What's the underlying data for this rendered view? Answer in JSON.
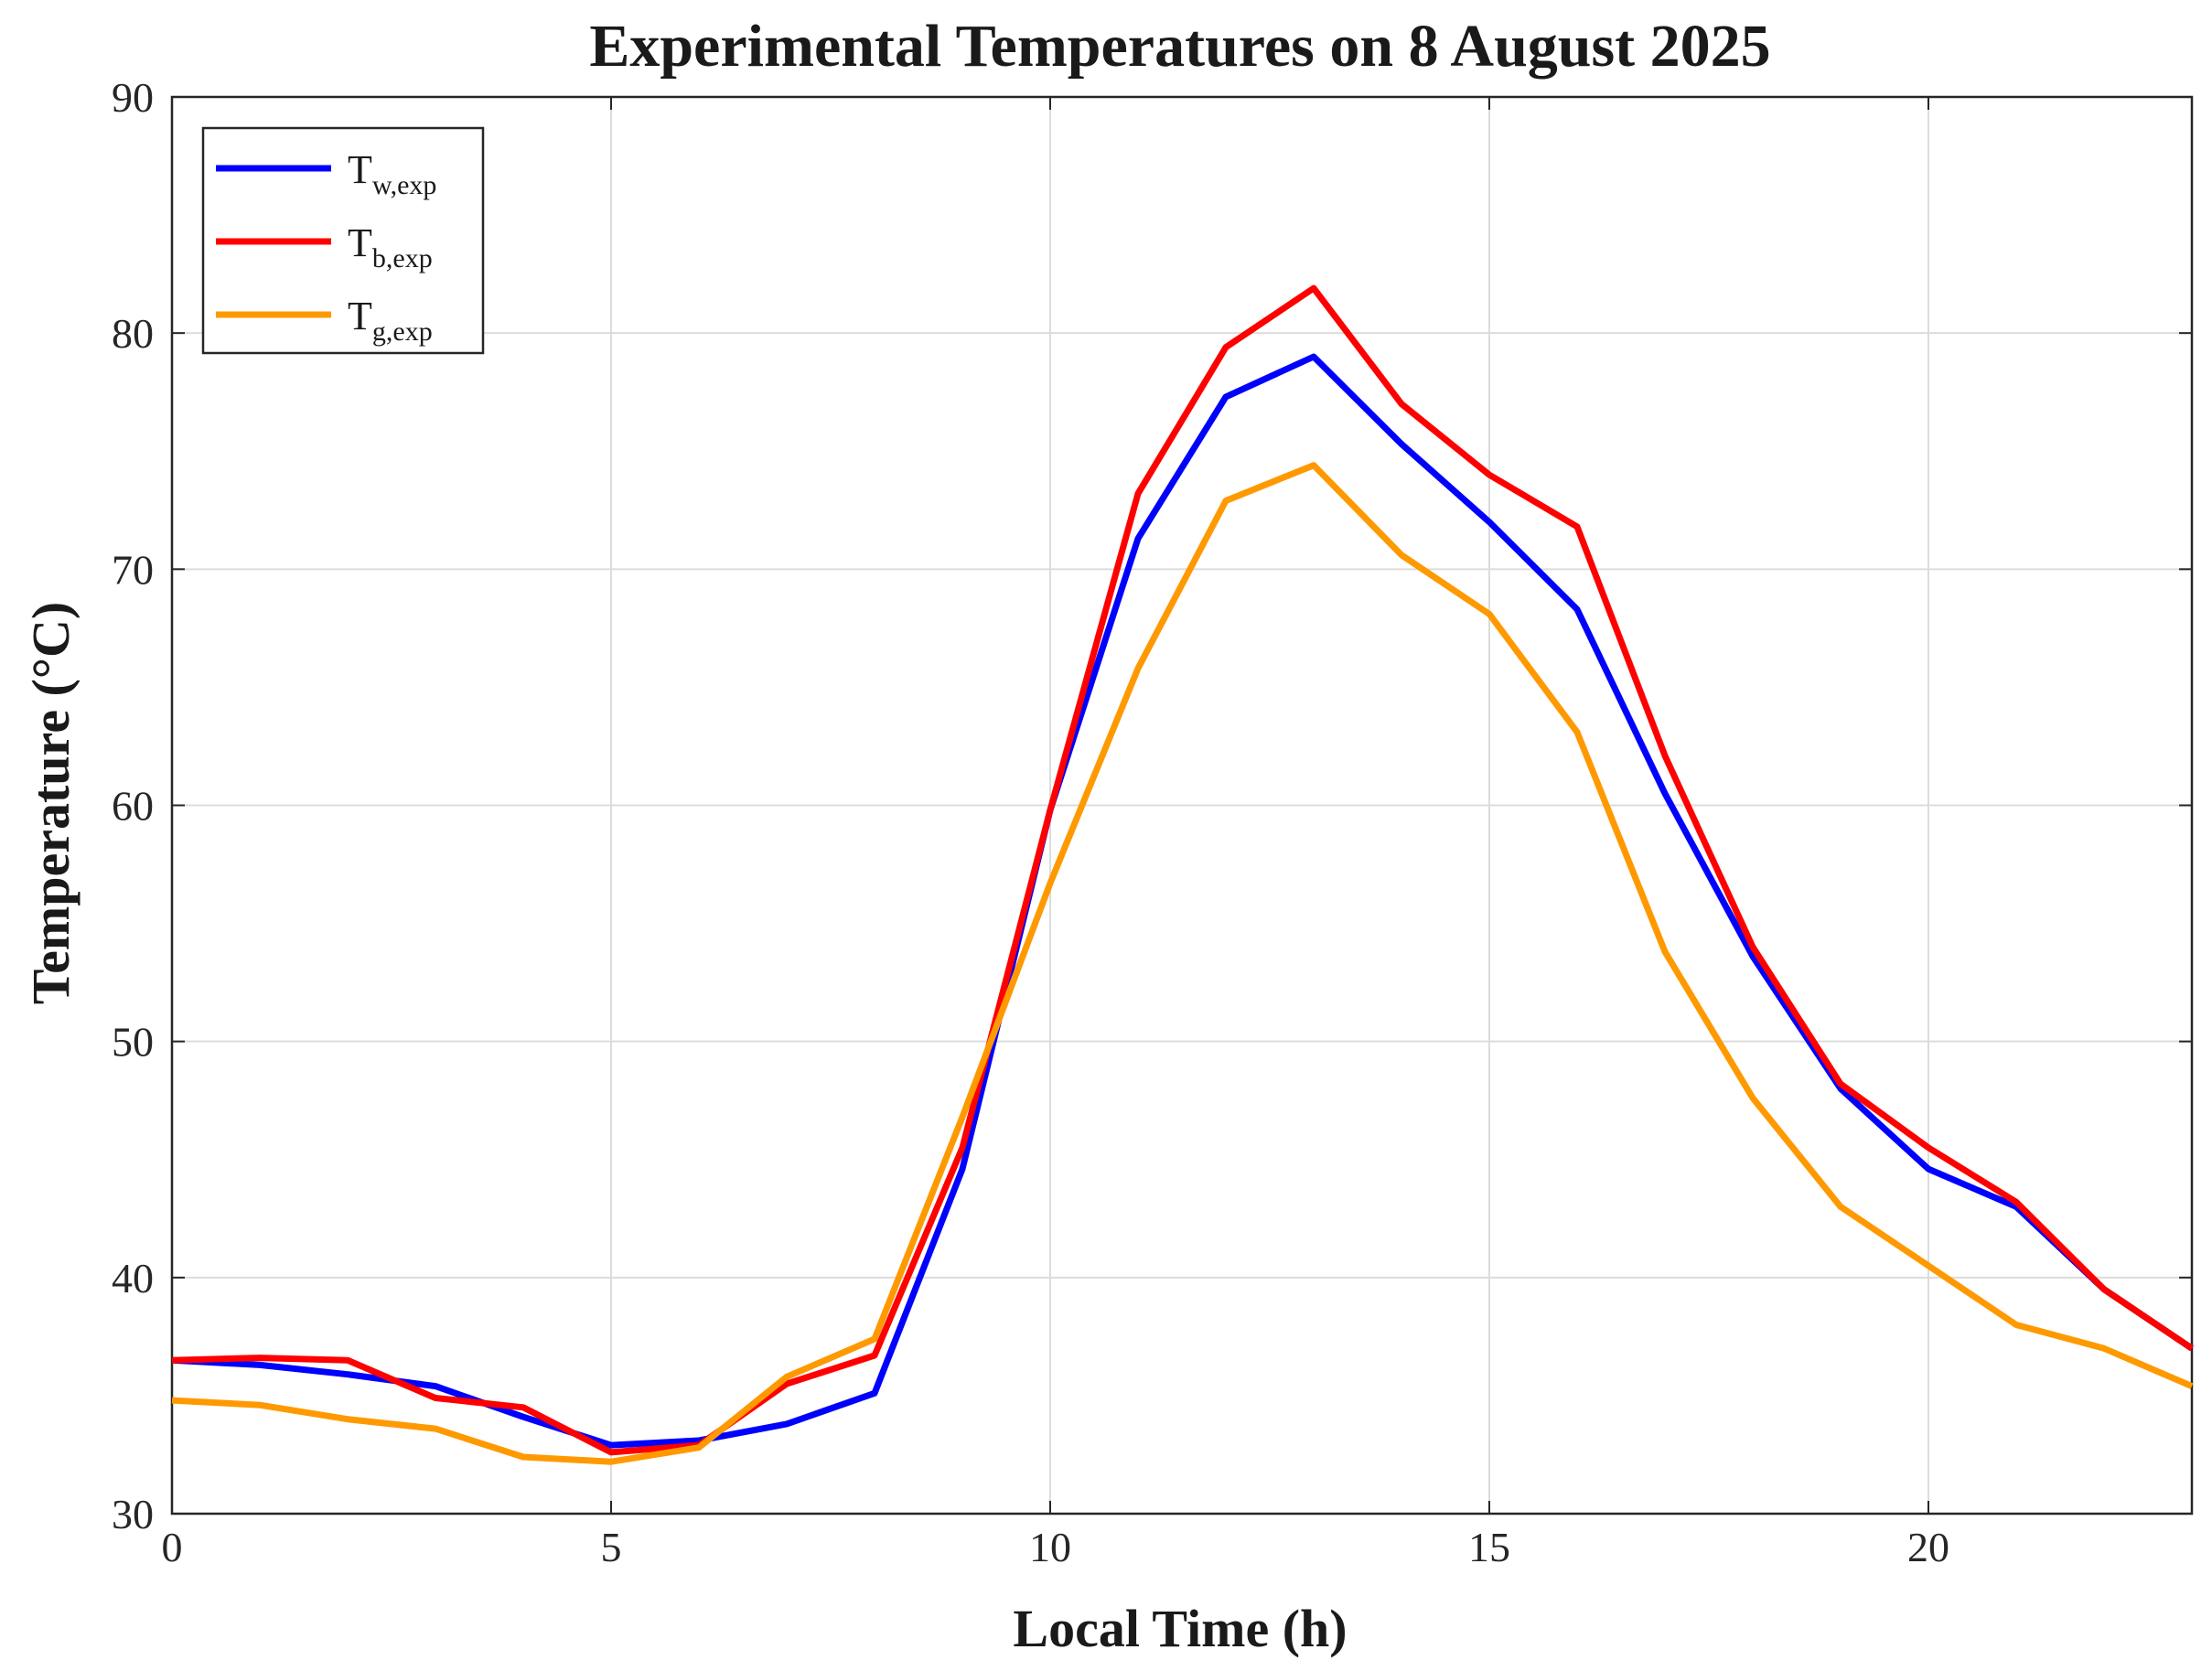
{
  "chart_data": {
    "type": "line",
    "title": "Experimental Temperatures on 8 August 2025",
    "xlabel": "Local Time (h)",
    "ylabel": "Temperature (°C)",
    "xlim": [
      0,
      23
    ],
    "ylim": [
      30,
      90
    ],
    "xticks": [
      0,
      5,
      10,
      15,
      20
    ],
    "yticks": [
      30,
      40,
      50,
      60,
      70,
      80,
      90
    ],
    "grid": true,
    "legend_position": "top-left",
    "x": [
      0,
      1,
      2,
      3,
      4,
      5,
      6,
      7,
      8,
      9,
      10,
      11,
      12,
      13,
      14,
      15,
      16,
      17,
      18,
      19,
      20,
      21,
      22,
      23
    ],
    "series": [
      {
        "name": "Tw,exp",
        "label_main": "T",
        "label_sub": "w,exp",
        "color": "#0000ff",
        "values": [
          36.5,
          36.3,
          35.9,
          35.4,
          34.1,
          32.9,
          33.1,
          33.8,
          35.1,
          44.6,
          59.8,
          71.3,
          77.3,
          79.0,
          75.3,
          72.0,
          68.3,
          60.5,
          53.6,
          48.0,
          44.6,
          43.0,
          39.5,
          37.0
        ]
      },
      {
        "name": "Tb,exp",
        "label_main": "T",
        "label_sub": "b,exp",
        "color": "#ff0000",
        "values": [
          36.5,
          36.6,
          36.5,
          34.9,
          34.5,
          32.6,
          32.9,
          35.5,
          36.7,
          45.5,
          59.8,
          73.2,
          79.4,
          81.9,
          77.0,
          74.0,
          71.8,
          62.1,
          54.0,
          48.2,
          45.5,
          43.2,
          39.5,
          37.0
        ]
      },
      {
        "name": "Tg,exp",
        "label_main": "T",
        "label_sub": "g,exp",
        "color": "#ff9900",
        "values": [
          34.8,
          34.6,
          34.0,
          33.6,
          32.4,
          32.2,
          32.8,
          35.8,
          37.4,
          46.8,
          56.7,
          65.8,
          72.9,
          74.4,
          70.6,
          68.1,
          63.1,
          53.8,
          47.6,
          43.0,
          40.5,
          38.0,
          37.0,
          35.4
        ]
      }
    ]
  }
}
